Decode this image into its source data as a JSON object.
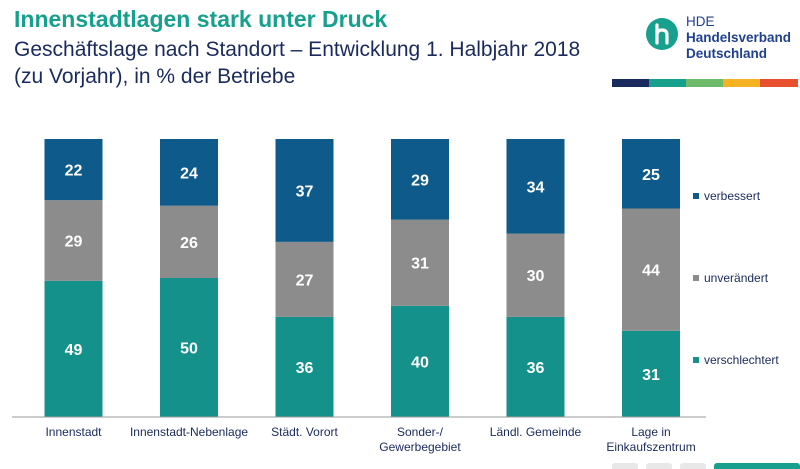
{
  "header": {
    "title": "Innenstadtlagen stark unter Druck",
    "subtitle": "Geschäftslage nach Standort – Entwicklung 1. Halbjahr 2018 (zu Vorjahr), in % der Betriebe"
  },
  "logo": {
    "line1": "HDE",
    "line2": "Handelsverband",
    "line3": "Deutschland"
  },
  "colors": {
    "title": "#17a08d",
    "subtitle": "#1a2a5e",
    "verbessert": "#0e5a8a",
    "unveraendert": "#8c8c8c",
    "verschlechtert": "#14918a",
    "stripe": [
      "#1a2a5e",
      "#17a08d",
      "#6dbb6a",
      "#f5b323",
      "#e8502f"
    ]
  },
  "chart_data": {
    "type": "bar",
    "stacked": true,
    "categories": [
      [
        "Innenstadt"
      ],
      [
        "Innenstadt-Nebenlage"
      ],
      [
        "Städt. Vorort"
      ],
      [
        "Sonder-/",
        "Gewerbegebiet"
      ],
      [
        "Ländl. Gemeinde"
      ],
      [
        "Lage in",
        "Einkaufszentrum"
      ]
    ],
    "series": [
      {
        "name": "verschlechtert",
        "values": [
          49,
          50,
          36,
          40,
          36,
          31
        ]
      },
      {
        "name": "unverändert",
        "values": [
          29,
          26,
          27,
          31,
          30,
          44
        ]
      },
      {
        "name": "verbessert",
        "values": [
          22,
          24,
          37,
          29,
          34,
          25
        ]
      }
    ],
    "ylim": [
      0,
      100
    ],
    "legend_position": "right",
    "grid": false
  }
}
